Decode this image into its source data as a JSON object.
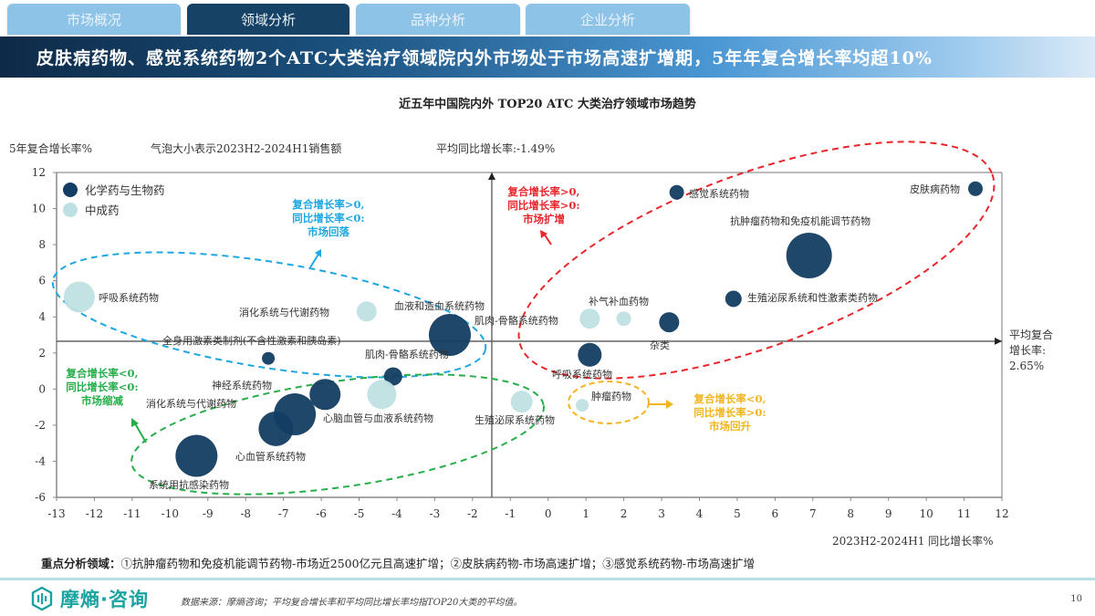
{
  "tabs": [
    {
      "label": "市场概况",
      "active": false
    },
    {
      "label": "领域分析",
      "active": true
    },
    {
      "label": "品种分析",
      "active": false
    },
    {
      "label": "企业分析",
      "active": false
    }
  ],
  "banner": {
    "title": "皮肤病药物、感觉系统药物2个ATC大类治疗领域院内外市场处于市场高速扩增期，5年年复合增长率均超10%"
  },
  "chart_header": {
    "title": "近五年中国院内外 TOP20 ATC 大类治疗领域市场趋势",
    "y_axis_label": "5年复合增长率%",
    "bubble_note": "气泡大小表示2023H2-2024H1销售额",
    "avg_yoy_note": "平均同比增长率:-1.49%",
    "avg_cagr_note_line1": "平均复合",
    "avg_cagr_note_line2": "增长率:",
    "avg_cagr_note_line3": "2.65%",
    "x_axis_label": "2023H2-2024H1 同比增长率%"
  },
  "quadrant_notes": {
    "blue": {
      "line1": "复合增长率>0,",
      "line2": "同比增长率<0:",
      "line3": "市场回落",
      "color": "#1ea7e1"
    },
    "red": {
      "line1": "复合增长率>0,",
      "line2": "同比增长率>0:",
      "line3": "市场扩增",
      "color": "#e8262b"
    },
    "green": {
      "line1": "复合增长率<0,",
      "line2": "同比增长率<0:",
      "line3": "市场缩减",
      "color": "#27ae4a"
    },
    "yellow": {
      "line1": "复合增长率<0,",
      "line2": "同比增长率>0:",
      "line3": "市场回升",
      "color": "#f2b51f"
    }
  },
  "key_areas": {
    "label": "重点分析领域：",
    "text": "①抗肿瘤药物和免疫机能调节药物-市场近2500亿元且高速扩增；②皮肤病药物-市场高速扩增；③感觉系统药物-市场高速扩增"
  },
  "footer": {
    "logo_text": "摩熵·咨询",
    "source": "数据来源：摩熵咨询；平均复合增长率和平均同比增长率均指TOP20大类的平均值。",
    "page": "10"
  },
  "chart_data": {
    "type": "scatter",
    "subtype": "bubble",
    "title": "近五年中国院内外 TOP20 ATC 大类治疗领域市场趋势",
    "xlabel": "2023H2-2024H1 同比增长率%",
    "ylabel": "5年复合增长率%",
    "xlim": [
      -13,
      12
    ],
    "ylim": [
      -6,
      12
    ],
    "x_ticks": [
      -13,
      -12,
      -11,
      -10,
      -9,
      -8,
      -7,
      -6,
      -5,
      -4,
      -3,
      -2,
      -1,
      0,
      1,
      2,
      3,
      4,
      5,
      6,
      7,
      8,
      9,
      10,
      11,
      12
    ],
    "y_ticks": [
      -6,
      -4,
      -2,
      0,
      2,
      4,
      6,
      8,
      10,
      12
    ],
    "reference_lines": {
      "avg_yoy_x": -1.49,
      "avg_cagr_y": 2.65
    },
    "legend": [
      {
        "name": "化学药与生物药",
        "color": "#133d62"
      },
      {
        "name": "中成药",
        "color": "#bfe0e2"
      }
    ],
    "legend_position": "top-left",
    "series": [
      {
        "name": "化学药与生物药",
        "color": "#133d62",
        "points": [
          {
            "label": "皮肤病药物",
            "x": 11.3,
            "y": 11.1,
            "r": 8
          },
          {
            "label": "感觉系统药物",
            "x": 3.4,
            "y": 10.9,
            "r": 8
          },
          {
            "label": "抗肿瘤药物和免疫机能调节药物",
            "x": 6.9,
            "y": 7.4,
            "r": 25
          },
          {
            "label": "生殖泌尿系统和性激素类药物",
            "x": 4.9,
            "y": 5.0,
            "r": 9
          },
          {
            "label": "杂类",
            "x": 3.2,
            "y": 3.7,
            "r": 11
          },
          {
            "label": "呼吸系统药物",
            "x": 1.1,
            "y": 1.9,
            "r": 13
          },
          {
            "label": "血液和造血系统药物",
            "x": -2.6,
            "y": 3.0,
            "r": 23
          },
          {
            "label": "肌肉-骨骼系统药物",
            "x": -4.1,
            "y": 0.7,
            "r": 10
          },
          {
            "label": "全身用激素类制剂(不含性激素和胰岛素)",
            "x": -7.4,
            "y": 1.7,
            "r": 7
          },
          {
            "label": "神经系统药物",
            "x": -5.9,
            "y": -0.3,
            "r": 17
          },
          {
            "label": "消化系统与代谢药物",
            "x": -6.7,
            "y": -1.4,
            "r": 23
          },
          {
            "label": "心血管系统药物",
            "x": -7.2,
            "y": -2.2,
            "r": 19
          },
          {
            "label": "心脑血管与血液系统药物",
            "x": -5.9,
            "y": -0.3,
            "r": 0
          },
          {
            "label": "系统用抗感染药物",
            "x": -9.3,
            "y": -3.7,
            "r": 23
          }
        ]
      },
      {
        "name": "中成药",
        "color": "#bfe0e2",
        "points": [
          {
            "label": "呼吸系统药物",
            "x": -12.4,
            "y": 5.1,
            "r": 17
          },
          {
            "label": "消化系统与代谢药物",
            "x": -4.8,
            "y": 4.3,
            "r": 11
          },
          {
            "label": "心脑血管与血液系统药物",
            "x": -4.4,
            "y": -0.3,
            "r": 16
          },
          {
            "label": "补气补血药物",
            "x": 2.0,
            "y": 3.9,
            "r": 8
          },
          {
            "label": "肌肉-骨骼系统药物",
            "x": 1.1,
            "y": 3.9,
            "r": 11
          },
          {
            "label": "生殖泌尿系统药物",
            "x": -0.7,
            "y": -0.7,
            "r": 12
          },
          {
            "label": "肿瘤药物",
            "x": 0.9,
            "y": -0.9,
            "r": 7
          }
        ]
      }
    ]
  }
}
